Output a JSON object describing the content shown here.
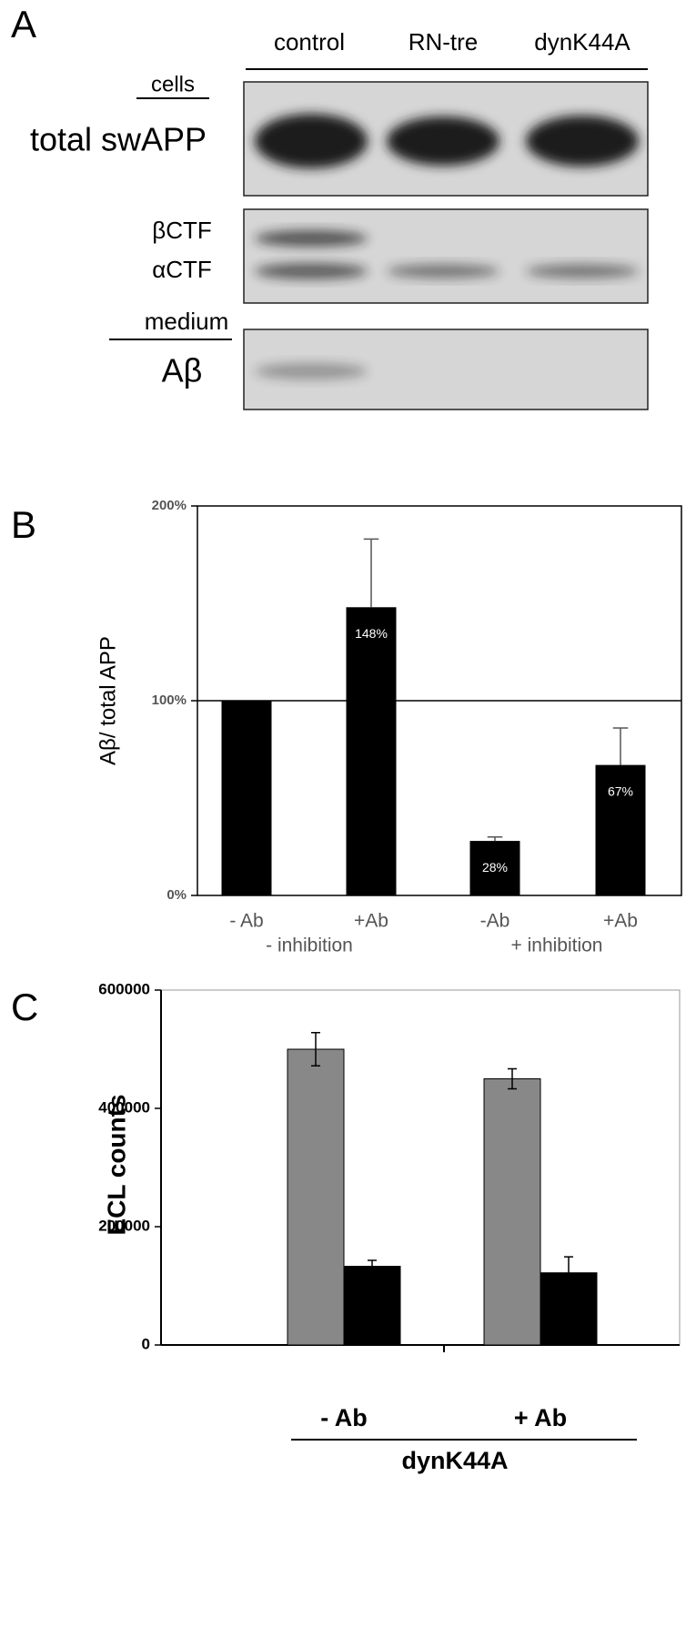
{
  "panel_a": {
    "label": "A",
    "lanes": [
      "control",
      "RN-tre",
      "dynK44A"
    ],
    "section_cells": "cells",
    "rows": [
      "total swAPP",
      "βCTF",
      "αCTF"
    ],
    "section_medium": "medium",
    "row_medium": "Aβ"
  },
  "chart_data": [
    {
      "type": "bar",
      "panel_label": "B",
      "y_label": "Aβ/ total APP",
      "categories": [
        "- Ab",
        "+Ab",
        "-Ab",
        "+Ab"
      ],
      "group_labels": [
        "- inhibition",
        "+ inhibition"
      ],
      "series": [
        {
          "color": "#000000",
          "values": [
            100,
            148,
            28,
            67
          ],
          "errors": [
            null,
            35,
            2,
            19
          ],
          "value_labels": [
            null,
            "148%",
            "28%",
            "67%"
          ]
        }
      ],
      "reference_line": 100,
      "ylim": [
        0,
        200
      ],
      "yticks": [
        {
          "value": 0,
          "label": "0%"
        },
        {
          "value": 100,
          "label": "100%"
        },
        {
          "value": 200,
          "label": "200%"
        }
      ]
    },
    {
      "type": "grouped_bar",
      "panel_label": "C",
      "y_label": "ECL counts",
      "categories": [
        "- Ab",
        "+ Ab"
      ],
      "group_labels": [
        "dynK44A"
      ],
      "series": [
        {
          "color": "#888888",
          "values": [
            500000,
            450000
          ],
          "errors": [
            28000,
            17000
          ]
        },
        {
          "color": "#000000",
          "values": [
            133000,
            122000
          ],
          "errors": [
            10000,
            27000
          ]
        }
      ],
      "ylim": [
        0,
        600000
      ],
      "yticks": [
        0,
        200000,
        400000,
        600000
      ]
    }
  ]
}
